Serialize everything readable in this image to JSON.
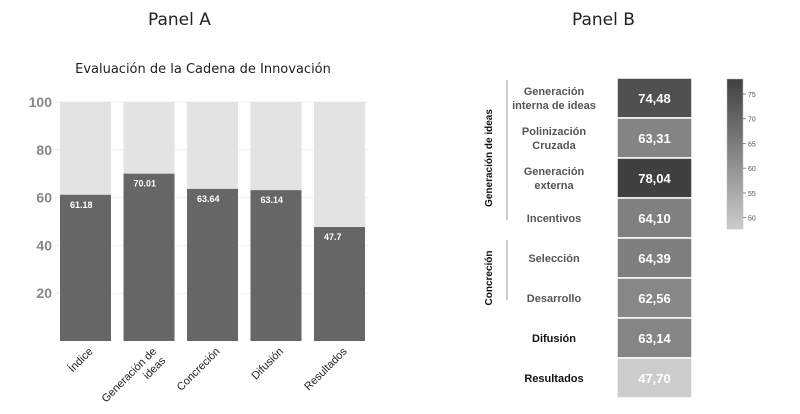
{
  "panels": {
    "a_title": "Panel A",
    "b_title": "Panel B"
  },
  "chart_data": [
    {
      "type": "bar",
      "title": "Evaluación de la Cadena de Innovación",
      "categories": [
        "Índice",
        "Generación de ideas",
        "Concreción",
        "Difusión",
        "Resultados"
      ],
      "category_lines": [
        [
          "Índice"
        ],
        [
          "Generación de",
          "ideas"
        ],
        [
          "Concreción"
        ],
        [
          "Difusión"
        ],
        [
          "Resultados"
        ]
      ],
      "values": [
        61.18,
        70.01,
        63.64,
        63.14,
        47.7
      ],
      "value_labels": [
        "61.18",
        "70.01",
        "63.64",
        "63.14",
        "47.7"
      ],
      "ylim": [
        0,
        100
      ],
      "yticks": [
        20,
        40,
        60,
        80,
        100
      ],
      "grid": true,
      "stacked_remainder_to": 100,
      "colors": {
        "bar": "#666666",
        "remainder": "#e3e3e3",
        "axis_text": "#888888"
      }
    },
    {
      "type": "heatmap",
      "groups": [
        {
          "label": "Generación de ideas",
          "rows": [
            0,
            1,
            2,
            3
          ]
        },
        {
          "label": "Concreción",
          "rows": [
            4,
            5
          ]
        }
      ],
      "rows": [
        {
          "lines": [
            "Generación",
            "interna de ideas"
          ],
          "value": 74.48,
          "label": "74,48",
          "bold": false
        },
        {
          "lines": [
            "Polinización",
            "Cruzada"
          ],
          "value": 63.31,
          "label": "63,31",
          "bold": false
        },
        {
          "lines": [
            "Generación",
            "externa"
          ],
          "value": 78.04,
          "label": "78,04",
          "bold": false
        },
        {
          "lines": [
            "Incentivos"
          ],
          "value": 64.1,
          "label": "64,10",
          "bold": false
        },
        {
          "lines": [
            "Selección"
          ],
          "value": 64.39,
          "label": "64,39",
          "bold": false
        },
        {
          "lines": [
            "Desarrollo"
          ],
          "value": 62.56,
          "label": "62,56",
          "bold": false
        },
        {
          "lines": [
            "Difusión"
          ],
          "value": 63.14,
          "label": "63,14",
          "bold": true
        },
        {
          "lines": [
            "Resultados"
          ],
          "value": 47.7,
          "label": "47,70",
          "bold": true
        }
      ],
      "colorbar": {
        "min": 47.7,
        "max": 78.04,
        "ticks": [
          50,
          55,
          60,
          65,
          70,
          75
        ]
      },
      "colors": {
        "low": "#cccccc",
        "high": "#404040"
      }
    }
  ]
}
